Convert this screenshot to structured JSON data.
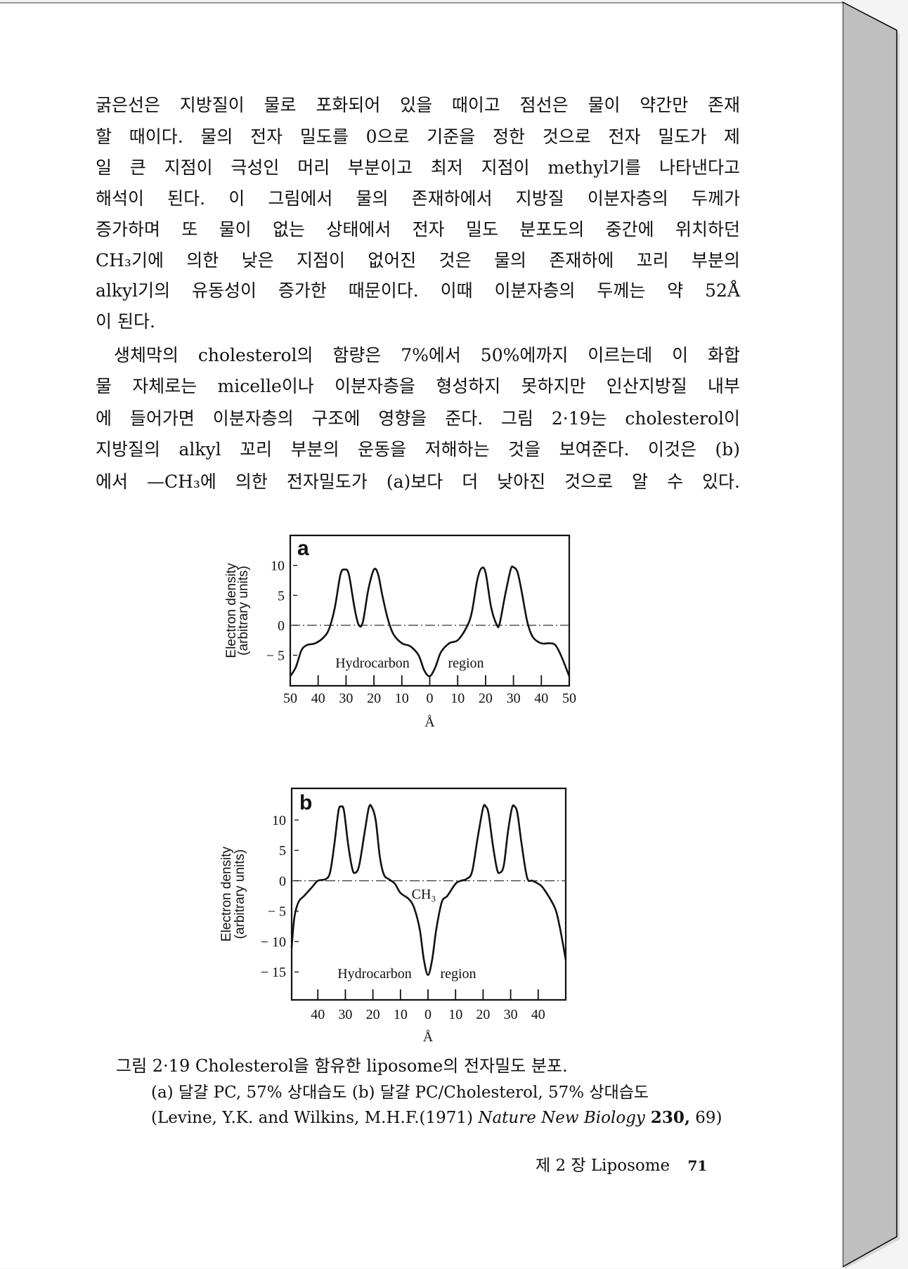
{
  "body": {
    "paragraph1": [
      "굵은선은 지방질이 물로 포화되어 있을 때이고 점선은 물이 약간만 존재",
      "할 때이다. 물의 전자 밀도를 0으로 기준을 정한 것으로 전자 밀도가 제",
      "일 큰 지점이 극성인 머리 부분이고 최저 지점이 methyl기를 나타낸다고",
      "해석이 된다. 이 그림에서 물의 존재하에서 지방질 이분자층의 두께가",
      "증가하며 또 물이 없는 상태에서 전자 밀도 분포도의 중간에 위치하던",
      "CH₃기에 의한 낮은 지점이 없어진 것은 물의 존재하에 꼬리 부분의",
      "alkyl기의 유동성이 증가한 때문이다. 이때 이분자층의 두께는 약 52Å",
      "이 된다."
    ],
    "paragraph2": [
      "생체막의 cholesterol의 함량은 7%에서 50%에까지 이르는데 이 화합",
      "물 자체로는 micelle이나 이분자층을 형성하지 못하지만 인산지방질 내부",
      "에 들어가면 이분자층의 구조에 영향을 준다. 그림 2·19는 cholesterol이",
      "지방질의 alkyl 꼬리 부분의 운동을 저해하는 것을 보여준다. 이것은 (b)",
      "에서 —CH₃에 의한 전자밀도가 (a)보다 더 낮아진 것으로 알 수 있다."
    ]
  },
  "caption": {
    "title": "그림 2·19  Cholesterol을 함유한 liposome의 전자밀도 분포.",
    "line2": "(a) 달걀 PC, 57% 상대습도 (b) 달걀 PC/Cholesterol, 57% 상대습도",
    "ref_authors": "(Levine, Y.K. and Wilkins, M.H.F.(1971) ",
    "ref_journal": "Nature New Biology",
    "ref_volume": " 230,",
    "ref_pages": " 69)"
  },
  "footer": {
    "chapter": "제 2 장  Liposome",
    "page_number": "71"
  },
  "chart_data": [
    {
      "type": "line",
      "panel_label": "a",
      "ylabel": [
        "Electron density",
        "(arbitrary units)"
      ],
      "xlabel": "Å",
      "x_tick_labels": [
        "50",
        "40",
        "30",
        "20",
        "10",
        "0",
        "10",
        "20",
        "30",
        "40",
        "50"
      ],
      "x_ticks": [
        -50,
        -40,
        -30,
        -20,
        -10,
        0,
        10,
        20,
        30,
        40,
        50
      ],
      "y_ticks": [
        10,
        5,
        0,
        -5
      ],
      "xlim": [
        -50,
        50
      ],
      "ylim": [
        -10.1,
        15
      ],
      "annotations": [
        "Hydrocarbon",
        "region"
      ],
      "reference_line": {
        "y": 0,
        "style": "dash-dot"
      },
      "points": [
        [
          -50,
          -8.5
        ],
        [
          -48,
          -7
        ],
        [
          -46,
          -4.2
        ],
        [
          -44,
          -3.3
        ],
        [
          -41,
          -3
        ],
        [
          -38,
          -2
        ],
        [
          -36,
          -0.5
        ],
        [
          -34,
          3
        ],
        [
          -32,
          8.5
        ],
        [
          -30.5,
          9.3
        ],
        [
          -29,
          8.5
        ],
        [
          -27,
          3
        ],
        [
          -25.5,
          0.1
        ],
        [
          -24,
          0.5
        ],
        [
          -22,
          6
        ],
        [
          -20,
          9.3
        ],
        [
          -18.5,
          8.5
        ],
        [
          -17,
          5
        ],
        [
          -15,
          1
        ],
        [
          -13,
          -1.5
        ],
        [
          -10,
          -3
        ],
        [
          -7,
          -3.5
        ],
        [
          -4,
          -5
        ],
        [
          -2,
          -7.5
        ],
        [
          0,
          -8.5
        ],
        [
          2,
          -7
        ],
        [
          4,
          -4.5
        ],
        [
          7,
          -3
        ],
        [
          10,
          -2.5
        ],
        [
          13,
          -0.5
        ],
        [
          15,
          2
        ],
        [
          17,
          7.5
        ],
        [
          18.5,
          9.5
        ],
        [
          20,
          8.8
        ],
        [
          22,
          3
        ],
        [
          24,
          0.1
        ],
        [
          25,
          0.2
        ],
        [
          27,
          5
        ],
        [
          29,
          9.3
        ],
        [
          30,
          9.7
        ],
        [
          31.5,
          8.8
        ],
        [
          33,
          5.5
        ],
        [
          35,
          0.5
        ],
        [
          37,
          -2
        ],
        [
          40,
          -3
        ],
        [
          43,
          -3
        ],
        [
          45,
          -3.3
        ],
        [
          47,
          -5
        ],
        [
          50,
          -8.5
        ]
      ]
    },
    {
      "type": "line",
      "panel_label": "b",
      "ylabel": [
        "Electron density",
        "(arbitrary units)"
      ],
      "xlabel": "Å",
      "x_tick_labels": [
        "40",
        "30",
        "20",
        "10",
        "0",
        "10",
        "20",
        "30",
        "40"
      ],
      "x_ticks": [
        -40,
        -30,
        -20,
        -10,
        0,
        10,
        20,
        30,
        40
      ],
      "y_ticks": [
        10,
        5,
        0,
        -5,
        -10,
        -15
      ],
      "xlim": [
        -49.5,
        50
      ],
      "ylim": [
        -19.6,
        15.2
      ],
      "annotations": [
        "Hydrocarbon",
        "region",
        "CH₃"
      ],
      "reference_line": {
        "y": 0,
        "style": "dash-dot"
      },
      "points": [
        [
          -49.5,
          -11
        ],
        [
          -48.5,
          -6
        ],
        [
          -47,
          -3.5
        ],
        [
          -45,
          -2.5
        ],
        [
          -42,
          -1
        ],
        [
          -40,
          0
        ],
        [
          -37,
          0.3
        ],
        [
          -35.5,
          1.5
        ],
        [
          -34,
          6
        ],
        [
          -32.5,
          11.5
        ],
        [
          -31.5,
          12.2
        ],
        [
          -30.5,
          11.5
        ],
        [
          -29,
          6
        ],
        [
          -27.5,
          2
        ],
        [
          -26.5,
          1.3
        ],
        [
          -25,
          2.5
        ],
        [
          -23,
          8
        ],
        [
          -21.5,
          12
        ],
        [
          -20.5,
          12.2
        ],
        [
          -19,
          10
        ],
        [
          -17.5,
          4
        ],
        [
          -16,
          1
        ],
        [
          -14,
          0.2
        ],
        [
          -12,
          -0.5
        ],
        [
          -10,
          -2
        ],
        [
          -7,
          -3
        ],
        [
          -5,
          -4.5
        ],
        [
          -3,
          -8
        ],
        [
          -1.5,
          -13
        ],
        [
          0,
          -15.5
        ],
        [
          1.5,
          -13
        ],
        [
          3,
          -8
        ],
        [
          5,
          -3.5
        ],
        [
          7,
          -2.5
        ],
        [
          10,
          -0.5
        ],
        [
          12,
          0
        ],
        [
          14,
          0.3
        ],
        [
          16,
          1.5
        ],
        [
          18,
          7
        ],
        [
          20,
          12
        ],
        [
          21,
          12.2
        ],
        [
          22,
          11
        ],
        [
          23.5,
          6
        ],
        [
          25,
          2
        ],
        [
          26,
          1.3
        ],
        [
          27.5,
          2.5
        ],
        [
          29,
          8
        ],
        [
          30.5,
          12
        ],
        [
          31.5,
          12.2
        ],
        [
          32.5,
          11
        ],
        [
          34,
          6
        ],
        [
          36,
          0.5
        ],
        [
          38,
          0
        ],
        [
          41,
          -0.8
        ],
        [
          43,
          -2
        ],
        [
          45,
          -3.5
        ],
        [
          46.5,
          -5
        ],
        [
          48,
          -8
        ],
        [
          50,
          -13
        ]
      ]
    }
  ]
}
